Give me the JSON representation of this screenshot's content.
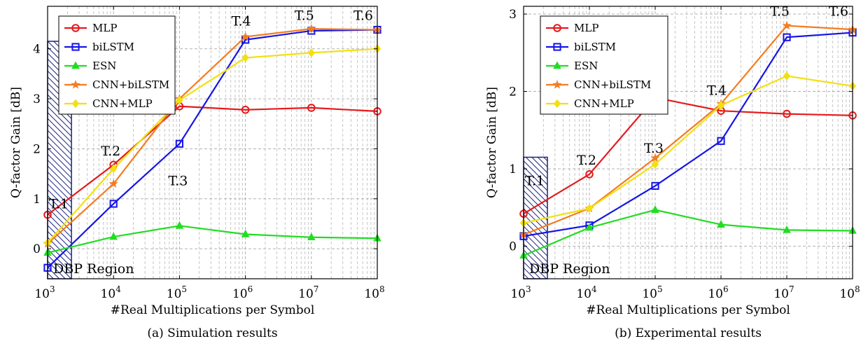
{
  "chart_data": [
    {
      "type": "line",
      "caption": "(a) Simulation results",
      "xlabel": "#Real Multiplications per Symbol",
      "ylabel": "Q-factor Gain [dB]",
      "x_scale": "log",
      "x": [
        1000,
        10000,
        100000,
        1000000,
        10000000,
        100000000
      ],
      "x_tick_labels": [
        {
          "base": "10",
          "exp": "3"
        },
        {
          "base": "10",
          "exp": "4"
        },
        {
          "base": "10",
          "exp": "5"
        },
        {
          "base": "10",
          "exp": "6"
        },
        {
          "base": "10",
          "exp": "7"
        },
        {
          "base": "10",
          "exp": "8"
        }
      ],
      "ylim": [
        -0.6,
        4.85
      ],
      "y_ticks": [
        0,
        1,
        2,
        3,
        4
      ],
      "grid": true,
      "legend_position": "top-left",
      "series": [
        {
          "name": "MLP",
          "color": "#e41a1c",
          "marker": "circle",
          "values": [
            0.68,
            1.68,
            2.85,
            2.78,
            2.82,
            2.75
          ]
        },
        {
          "name": "biLSTM",
          "color": "#1515e6",
          "marker": "square",
          "values": [
            -0.38,
            0.9,
            2.1,
            4.18,
            4.36,
            4.38
          ]
        },
        {
          "name": "ESN",
          "color": "#22dd22",
          "marker": "triangle",
          "values": [
            -0.08,
            0.24,
            0.46,
            0.29,
            0.23,
            0.21
          ]
        },
        {
          "name": "CNN+biLSTM",
          "color": "#f47c20",
          "marker": "star",
          "values": [
            0.1,
            1.3,
            3.0,
            4.24,
            4.4,
            4.38
          ]
        },
        {
          "name": "CNN+MLP",
          "color": "#f2e010",
          "marker": "diamond",
          "values": [
            0.12,
            1.6,
            2.97,
            3.82,
            3.92,
            4.0
          ]
        }
      ],
      "annotations": [
        {
          "text": "T.1",
          "x": 1000,
          "y": 0.75
        },
        {
          "text": "T.2",
          "x": 10000,
          "y": 1.78
        },
        {
          "text": "T.3",
          "x": 100000,
          "y": 1.72
        },
        {
          "text": "T.4",
          "x": 1000000,
          "y": 4.38
        },
        {
          "text": "T.5",
          "x": 10000000,
          "y": 4.52
        },
        {
          "text": "T.6",
          "x": 100000000,
          "y": 4.52
        }
      ],
      "region": {
        "label": "DBP Region",
        "x_from": 1000,
        "x_to": 2300,
        "y_top": 4.15
      }
    },
    {
      "type": "line",
      "caption": "(b) Experimental results",
      "xlabel": "#Real Multiplications per Symbol",
      "ylabel": "Q-factor Gain [dB]",
      "x_scale": "log",
      "x": [
        1000,
        10000,
        100000,
        1000000,
        10000000,
        100000000
      ],
      "x_tick_labels": [
        {
          "base": "10",
          "exp": "3"
        },
        {
          "base": "10",
          "exp": "4"
        },
        {
          "base": "10",
          "exp": "5"
        },
        {
          "base": "10",
          "exp": "6"
        },
        {
          "base": "10",
          "exp": "7"
        },
        {
          "base": "10",
          "exp": "8"
        }
      ],
      "ylim": [
        -0.42,
        3.1
      ],
      "y_ticks": [
        0,
        1,
        2,
        3
      ],
      "grid": true,
      "legend_position": "top-left",
      "series": [
        {
          "name": "MLP",
          "color": "#e41a1c",
          "marker": "circle",
          "values": [
            0.42,
            0.93,
            1.92,
            1.75,
            1.71,
            1.69
          ]
        },
        {
          "name": "biLSTM",
          "color": "#1515e6",
          "marker": "square",
          "values": [
            0.13,
            0.27,
            0.78,
            1.36,
            2.7,
            2.76
          ]
        },
        {
          "name": "ESN",
          "color": "#22dd22",
          "marker": "triangle",
          "values": [
            -0.12,
            0.24,
            0.47,
            0.28,
            0.21,
            0.2
          ]
        },
        {
          "name": "CNN+biLSTM",
          "color": "#f47c20",
          "marker": "star",
          "values": [
            0.15,
            0.49,
            1.14,
            1.84,
            2.85,
            2.8
          ]
        },
        {
          "name": "CNN+MLP",
          "color": "#f2e010",
          "marker": "diamond",
          "values": [
            0.3,
            0.49,
            1.06,
            1.82,
            2.2,
            2.07
          ]
        }
      ],
      "annotations": [
        {
          "text": "T.1",
          "x": 1000,
          "y": 0.75
        },
        {
          "text": "T.2",
          "x": 10000,
          "y": 1.0
        },
        {
          "text": "T.3",
          "x": 100000,
          "y": 1.5
        },
        {
          "text": "T.4",
          "x": 1000000,
          "y": 1.9
        },
        {
          "text": "T.5",
          "x": 10000000,
          "y": 2.94
        },
        {
          "text": "T.6",
          "x": 100000000,
          "y": 2.94
        }
      ],
      "region": {
        "label": "DBP Region",
        "x_from": 1000,
        "x_to": 2300,
        "y_top": 1.15
      }
    }
  ]
}
